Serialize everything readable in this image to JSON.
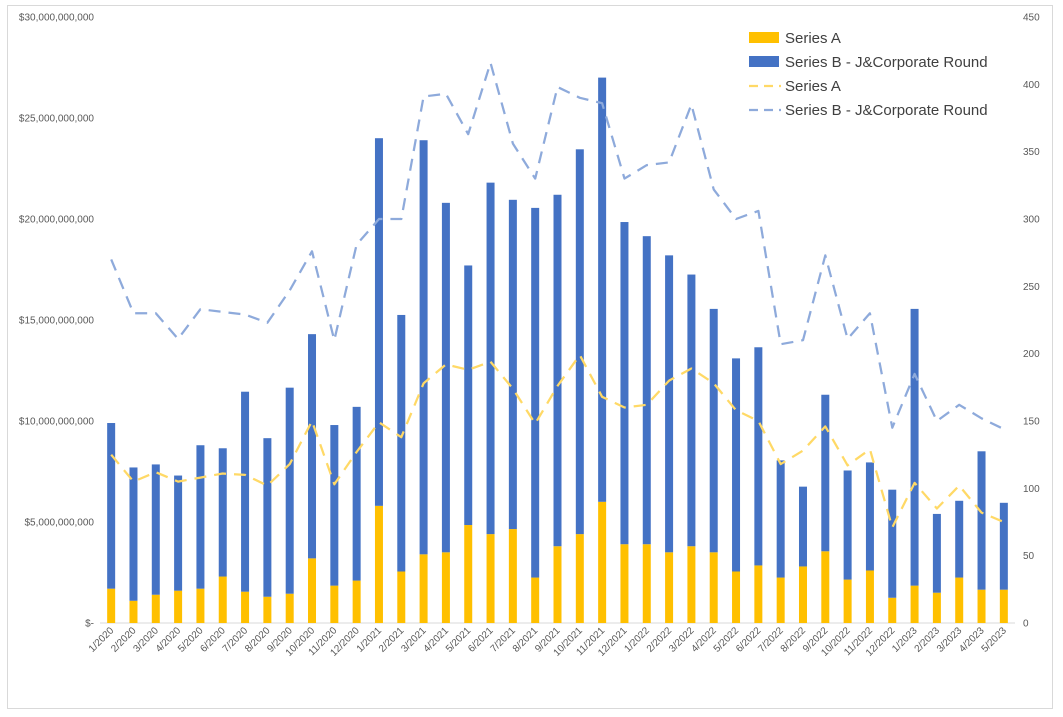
{
  "chart_data": {
    "type": "bar+line",
    "categories": [
      "1/2020",
      "2/2020",
      "3/2020",
      "4/2020",
      "5/2020",
      "6/2020",
      "7/2020",
      "8/2020",
      "9/2020",
      "10/2020",
      "11/2020",
      "12/2020",
      "1/2021",
      "2/2021",
      "3/2021",
      "4/2021",
      "5/2021",
      "6/2021",
      "7/2021",
      "8/2021",
      "9/2021",
      "10/2021",
      "11/2021",
      "12/2021",
      "1/2022",
      "2/2022",
      "3/2022",
      "4/2022",
      "5/2022",
      "6/2022",
      "7/2022",
      "8/2022",
      "9/2022",
      "10/2022",
      "11/2022",
      "12/2022",
      "1/2023",
      "2/2023",
      "3/2023",
      "4/2023",
      "5/2023"
    ],
    "bar_series": [
      {
        "name": "Series A",
        "color": "#ffc000",
        "values": [
          1.7,
          1.1,
          1.4,
          1.6,
          1.7,
          2.3,
          1.55,
          1.3,
          1.45,
          3.2,
          1.85,
          2.1,
          5.8,
          2.55,
          3.4,
          3.5,
          4.85,
          4.4,
          4.65,
          2.25,
          3.8,
          4.4,
          6.0,
          3.9,
          3.9,
          3.5,
          3.8,
          3.5,
          2.55,
          2.85,
          2.25,
          2.8,
          3.55,
          2.15,
          2.6,
          1.25,
          1.85,
          1.5,
          2.25,
          1.65,
          1.65
        ]
      },
      {
        "name": "Series B - J&Corporate Round",
        "color": "#4472c4",
        "values": [
          8.2,
          6.6,
          6.45,
          5.7,
          7.1,
          6.35,
          9.9,
          7.85,
          10.2,
          11.1,
          7.95,
          8.6,
          18.2,
          12.7,
          20.5,
          17.3,
          12.85,
          17.4,
          16.3,
          18.3,
          17.4,
          19.05,
          21.0,
          15.95,
          15.25,
          14.7,
          13.45,
          12.05,
          10.55,
          10.8,
          5.8,
          3.95,
          7.75,
          5.4,
          5.35,
          5.35,
          13.7,
          3.9,
          3.8,
          6.85,
          4.3
        ]
      }
    ],
    "line_series": [
      {
        "name": "Series A",
        "color": "#ffd966",
        "dash": "dashed",
        "values": [
          125,
          105,
          112,
          105,
          108,
          111,
          110,
          102,
          118,
          150,
          103,
          127,
          149,
          138,
          178,
          192,
          188,
          194,
          174,
          148,
          176,
          199,
          168,
          160,
          162,
          180,
          189,
          178,
          158,
          150,
          118,
          128,
          146,
          117,
          129,
          71,
          104,
          85,
          102,
          82,
          75
        ]
      },
      {
        "name": "Series B - J&Corporate Round",
        "color": "#8eaadb",
        "dash": "dashed",
        "values": [
          270,
          230,
          230,
          211,
          233,
          231,
          229,
          223,
          247,
          276,
          210,
          281,
          300,
          300,
          391,
          393,
          363,
          416,
          356,
          330,
          398,
          390,
          386,
          330,
          340,
          342,
          385,
          322,
          300,
          306,
          207,
          210,
          273,
          211,
          230,
          145,
          185,
          150,
          162,
          152,
          144
        ]
      }
    ],
    "y_left": {
      "min": 0,
      "max": 30000000000,
      "step": 5000000000,
      "ticks": [
        "$-",
        "$5,000,000,000",
        "$10,000,000,000",
        "$15,000,000,000",
        "$20,000,000,000",
        "$25,000,000,000",
        "$30,000,000,000"
      ]
    },
    "y_right": {
      "min": 0,
      "max": 450,
      "step": 50,
      "ticks": [
        "0",
        "50",
        "100",
        "150",
        "200",
        "250",
        "300",
        "350",
        "400",
        "450"
      ]
    },
    "legend": {
      "placement": "top-right",
      "items": [
        {
          "label": "Series A",
          "kind": "bar",
          "color": "#ffc000"
        },
        {
          "label": "Series B - J&Corporate Round",
          "kind": "bar",
          "color": "#4472c4"
        },
        {
          "label": "Series A",
          "kind": "line",
          "color": "#ffd966"
        },
        {
          "label": "Series B - J&Corporate Round",
          "kind": "line",
          "color": "#8eaadb"
        }
      ]
    },
    "grid": false,
    "stacked": true
  }
}
